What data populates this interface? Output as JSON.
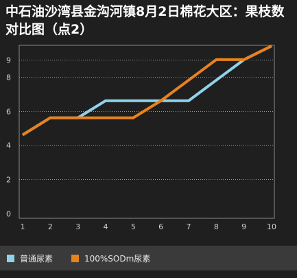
{
  "chart_data": {
    "type": "line",
    "title": "中石油沙湾县金沟河镇8月2日棉花大区：果枝数对比图（点2）",
    "xlabel": "",
    "ylabel": "",
    "x": [
      1,
      2,
      3,
      4,
      5,
      6,
      7,
      8,
      9,
      10
    ],
    "x_tick_labels": [
      "1",
      "2",
      "3",
      "4",
      "5",
      "6",
      "7",
      "8",
      "9",
      "10"
    ],
    "y_tick_labels": [
      "0",
      "2",
      "4",
      "6",
      "8",
      "9"
    ],
    "y_ticks": [
      0,
      2,
      4,
      6,
      8,
      9
    ],
    "ylim": [
      0,
      9.8
    ],
    "xlim": [
      1,
      10
    ],
    "grid": true,
    "legend_position": "bottom",
    "series": [
      {
        "name": "普通尿素",
        "color": "#8fd3ea",
        "values": [
          4.6,
          5.6,
          5.6,
          6.6,
          6.6,
          6.6,
          6.6,
          7.8,
          9.0,
          9.8
        ]
      },
      {
        "name": "100%SODm尿素",
        "color": "#e8821e",
        "values": [
          4.6,
          5.6,
          5.6,
          5.6,
          5.6,
          6.6,
          7.8,
          9.0,
          9.0,
          9.8
        ]
      }
    ]
  }
}
